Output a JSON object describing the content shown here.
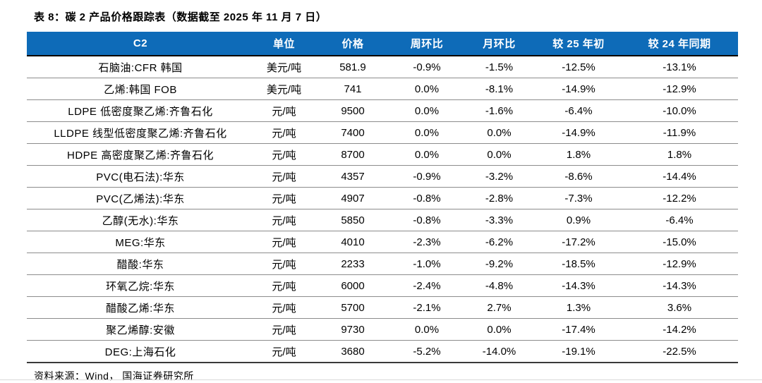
{
  "title": "表 8：碳 2 产品价格跟踪表（数据截至 2025 年 11 月 7 日）",
  "source_note": "资料来源：Wind， 国海证券研究所",
  "colors": {
    "header_bg": "#0E6BB8",
    "header_text": "#FFFFFF",
    "row_divider": "#8C8C8C",
    "table_bottom_edge": "#3A3A3A",
    "header_bottom_edge": "#000000"
  },
  "table": {
    "columns": [
      "C2",
      "单位",
      "价格",
      "周环比",
      "月环比",
      "较 25 年初",
      "较 24 年同期"
    ],
    "rows": [
      [
        "石脑油:CFR 韩国",
        "美元/吨",
        "581.9",
        "-0.9%",
        "-1.5%",
        "-12.5%",
        "-13.1%"
      ],
      [
        "乙烯:韩国 FOB",
        "美元/吨",
        "741",
        "0.0%",
        "-8.1%",
        "-14.9%",
        "-12.9%"
      ],
      [
        "LDPE 低密度聚乙烯:齐鲁石化",
        "元/吨",
        "9500",
        "0.0%",
        "-1.6%",
        "-6.4%",
        "-10.0%"
      ],
      [
        "LLDPE 线型低密度聚乙烯:齐鲁石化",
        "元/吨",
        "7400",
        "0.0%",
        "0.0%",
        "-14.9%",
        "-11.9%"
      ],
      [
        "HDPE 高密度聚乙烯:齐鲁石化",
        "元/吨",
        "8700",
        "0.0%",
        "0.0%",
        "1.8%",
        "1.8%"
      ],
      [
        "PVC(电石法):华东",
        "元/吨",
        "4357",
        "-0.9%",
        "-3.2%",
        "-8.6%",
        "-14.4%"
      ],
      [
        "PVC(乙烯法):华东",
        "元/吨",
        "4907",
        "-0.8%",
        "-2.8%",
        "-7.3%",
        "-12.2%"
      ],
      [
        "乙醇(无水):华东",
        "元/吨",
        "5850",
        "-0.8%",
        "-3.3%",
        "0.9%",
        "-6.4%"
      ],
      [
        "MEG:华东",
        "元/吨",
        "4010",
        "-2.3%",
        "-6.2%",
        "-17.2%",
        "-15.0%"
      ],
      [
        "醋酸:华东",
        "元/吨",
        "2233",
        "-1.0%",
        "-9.2%",
        "-18.5%",
        "-12.9%"
      ],
      [
        "环氧乙烷:华东",
        "元/吨",
        "6000",
        "-2.4%",
        "-4.8%",
        "-14.3%",
        "-14.3%"
      ],
      [
        "醋酸乙烯:华东",
        "元/吨",
        "5700",
        "-2.1%",
        "2.7%",
        "1.3%",
        "3.6%"
      ],
      [
        "聚乙烯醇:安徽",
        "元/吨",
        "9730",
        "0.0%",
        "0.0%",
        "-17.4%",
        "-14.2%"
      ],
      [
        "DEG:上海石化",
        "元/吨",
        "3680",
        "-5.2%",
        "-14.0%",
        "-19.1%",
        "-22.5%"
      ]
    ]
  }
}
